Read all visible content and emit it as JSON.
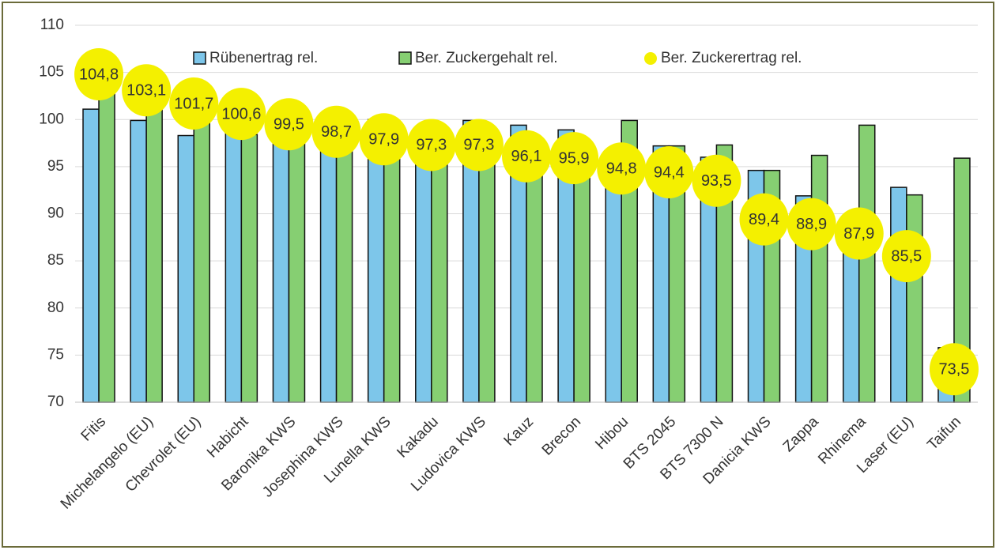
{
  "chart_data": {
    "type": "bar",
    "categories": [
      "Fitis",
      "Michelangelo (EU)",
      "Chevrolet (EU)",
      "Habicht",
      "Baronika KWS",
      "Josephina KWS",
      "Lunella KWS",
      "Kakadu",
      "Ludovica KWS",
      "Kauz",
      "Brecon",
      "Hibou",
      "BTS 2045",
      "BTS 7300 N",
      "Danicia KWS",
      "Zappa",
      "Rhinema",
      "Laser (EU)",
      "Taifun"
    ],
    "series": [
      {
        "name": "Rübenertrag rel.",
        "type": "bar",
        "color": "#7dc6ea",
        "values": [
          101.1,
          99.9,
          98.3,
          102.3,
          101.0,
          100.0,
          100.0,
          99.1,
          99.9,
          99.4,
          98.9,
          94.8,
          97.2,
          96.0,
          94.6,
          91.9,
          88.0,
          92.8,
          75.8
        ]
      },
      {
        "name": "Ber. Zuckergehalt rel.",
        "type": "bar",
        "color": "#86cf72",
        "values": [
          103.7,
          103.2,
          103.4,
          98.4,
          98.5,
          98.7,
          97.8,
          98.2,
          97.3,
          96.6,
          97.0,
          99.9,
          97.2,
          97.3,
          94.6,
          96.2,
          99.4,
          92.0,
          95.9
        ]
      },
      {
        "name": "Ber. Zuckerertrag rel.",
        "type": "scatter",
        "color": "#f4f000",
        "values": [
          104.8,
          103.1,
          101.7,
          100.6,
          99.5,
          98.7,
          97.9,
          97.3,
          97.3,
          96.1,
          95.9,
          94.8,
          94.4,
          93.5,
          89.4,
          88.9,
          87.9,
          85.5,
          73.5
        ],
        "value_labels": [
          "104,8",
          "103,1",
          "101,7",
          "100,6",
          "99,5",
          "98,7",
          "97,9",
          "97,3",
          "97,3",
          "96,1",
          "95,9",
          "94,8",
          "94,4",
          "93,5",
          "89,4",
          "88,9",
          "87,9",
          "85,5",
          "73,5"
        ]
      }
    ],
    "ylim": [
      70,
      110
    ],
    "yticks": [
      70,
      75,
      80,
      85,
      90,
      95,
      100,
      105,
      110
    ],
    "grid": true
  }
}
